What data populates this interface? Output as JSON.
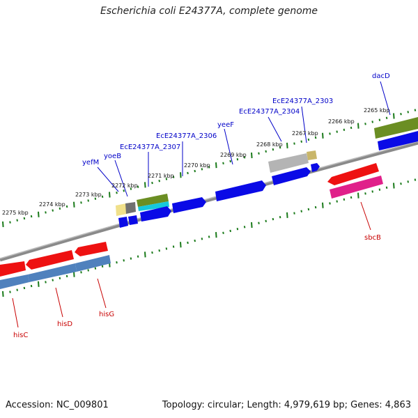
{
  "title": "Escherichia coli E24377A, complete genome",
  "accession": "Accession: NC_009801",
  "stats": "Topology: circular; Length: 4,979,619 bp; Genes: 4,863",
  "colors": {
    "backbone": "#8a8a8a",
    "ticks": "#1a7a1a",
    "label_blue": "#0000c8",
    "label_red": "#c80000",
    "gene_blue": "#0a0ae6",
    "gene_red": "#ee1111",
    "gene_olive": "#6b8e23",
    "gene_steel": "#4f81bd",
    "gene_pink": "#e0208a",
    "gene_gray": "#b4b4b4",
    "gene_khaki": "#c9b66a",
    "gene_cyan": "#16c8dc"
  },
  "kbp_labels": [
    "2275 kbp",
    "2274 kbp",
    "2273 kbp",
    "2272 kbp",
    "2271 kbp",
    "2270 kbp",
    "2269 kbp",
    "2268 kbp",
    "2267 kbp",
    "2266 kbp",
    "2265 kbp"
  ],
  "gene_labels_top": [
    "yefM",
    "yoeB",
    "EcE24377A_2307",
    "EcE24377A_2306",
    "yeeF",
    "EcE24377A_2304",
    "EcE24377A_2303",
    "dacD"
  ],
  "gene_labels_bottom": [
    "hisC",
    "hisD",
    "hisG",
    "sbcB"
  ]
}
